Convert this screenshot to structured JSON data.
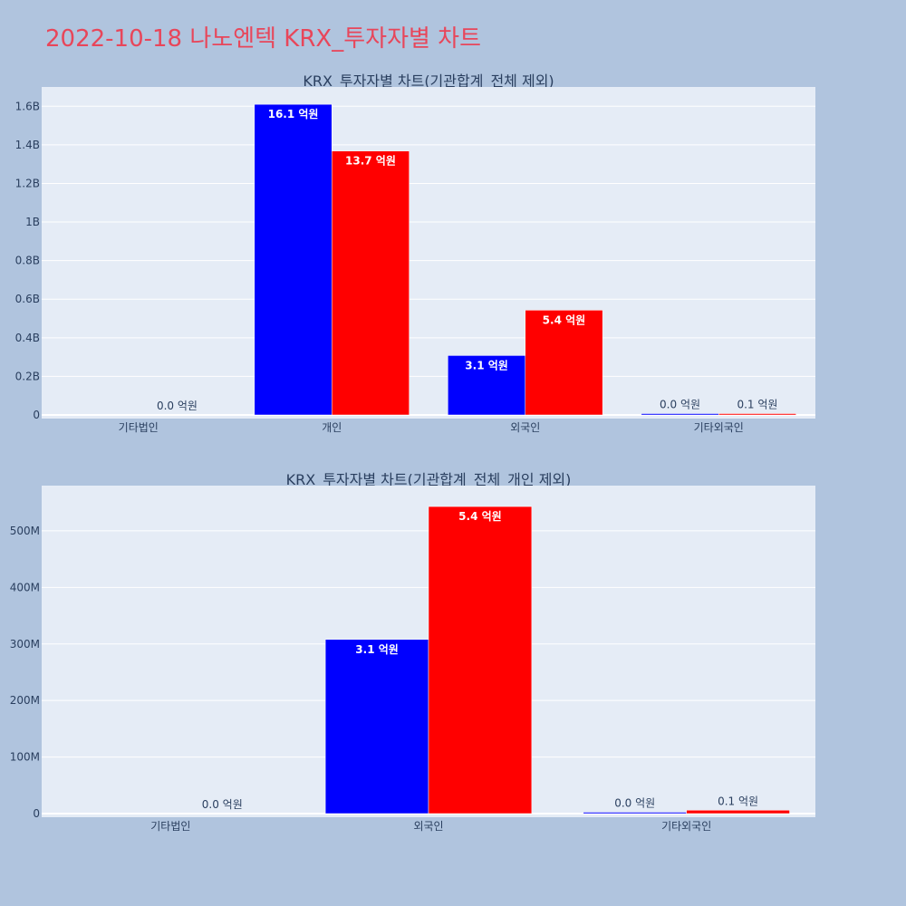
{
  "title": "2022-10-18 나노엔텍 KRX_투자자별 차트",
  "colors": {
    "buy": "#0000ff",
    "sell": "#ff0000",
    "plot_bg": "#e5ecf6",
    "page_bg": "#b0c4de",
    "title": "#e8465a"
  },
  "chart_data": [
    {
      "type": "bar",
      "title": "KRX_투자자별 차트(기관합계_전체 제외)",
      "categories": [
        "기타법인",
        "개인",
        "외국인",
        "기타외국인"
      ],
      "series": [
        {
          "values": [
            0,
            1610000000,
            308000000,
            1200000
          ],
          "labels": [
            "",
            "16.1 억원",
            "3.1 억원",
            "0.0 억원"
          ]
        },
        {
          "values": [
            0,
            1368000000,
            543000000,
            6000000
          ],
          "labels": [
            "0.0 억원",
            "13.7 억원",
            "5.4 억원",
            "0.1 억원"
          ]
        }
      ],
      "yticks": [
        0,
        200000000,
        400000000,
        600000000,
        800000000,
        1000000000,
        1200000000,
        1400000000,
        1600000000
      ],
      "ytick_labels": [
        "0",
        "0.2B",
        "0.4B",
        "0.6B",
        "0.8B",
        "1B",
        "1.2B",
        "1.4B",
        "1.6B"
      ],
      "ylim": [
        0,
        1700000000
      ]
    },
    {
      "type": "bar",
      "title": "KRX_투자자별 차트(기관합계_전체_개인 제외)",
      "categories": [
        "기타법인",
        "외국인",
        "기타외국인"
      ],
      "series": [
        {
          "values": [
            0,
            308000000,
            1200000
          ],
          "labels": [
            "",
            "3.1 억원",
            "0.0 억원"
          ]
        },
        {
          "values": [
            0,
            543000000,
            6000000
          ],
          "labels": [
            "0.0 억원",
            "5.4 억원",
            "0.1 억원"
          ]
        }
      ],
      "yticks": [
        0,
        100000000,
        200000000,
        300000000,
        400000000,
        500000000
      ],
      "ytick_labels": [
        "0",
        "100M",
        "200M",
        "300M",
        "400M",
        "500M"
      ],
      "ylim": [
        0,
        580000000
      ]
    }
  ]
}
